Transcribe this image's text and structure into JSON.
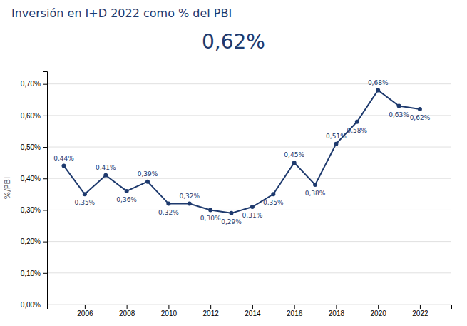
{
  "chart_data": {
    "type": "line",
    "title": "Inversión en I+D 2022 como % del PBI",
    "subtitle": "0,62%",
    "ylabel": "%/PBI",
    "x": [
      2005,
      2006,
      2007,
      2008,
      2009,
      2010,
      2011,
      2012,
      2013,
      2014,
      2015,
      2016,
      2017,
      2018,
      2019,
      2020,
      2021,
      2022
    ],
    "values": [
      0.44,
      0.35,
      0.41,
      0.36,
      0.39,
      0.32,
      0.32,
      0.3,
      0.29,
      0.31,
      0.35,
      0.45,
      0.38,
      0.51,
      0.58,
      0.68,
      0.63,
      0.62
    ],
    "value_labels": [
      "0,44%",
      "0,35%",
      "0,41%",
      "0,36%",
      "0,39%",
      "0,32%",
      "0,32%",
      "0,30%",
      "0,29%",
      "0,31%",
      "0,35%",
      "0,45%",
      "0,38%",
      "0,51%",
      "0,58%",
      "0,68%",
      "0,63%",
      "0,62%"
    ],
    "data_labels": true,
    "color": "#1e3a6e",
    "marker": "circle",
    "xlim": [
      2004.2,
      2023.5
    ],
    "xticks": [
      2006,
      2008,
      2010,
      2012,
      2014,
      2016,
      2018,
      2020,
      2022
    ],
    "ylim": [
      0.0,
      0.74
    ],
    "yticks": [
      {
        "value": 0.0,
        "label": "0,00%"
      },
      {
        "value": 0.1,
        "label": "0,10%"
      },
      {
        "value": 0.2,
        "label": "0,20%"
      },
      {
        "value": 0.3,
        "label": "0,30%"
      },
      {
        "value": 0.4,
        "label": "0,40%"
      },
      {
        "value": 0.5,
        "label": "0,50%"
      },
      {
        "value": 0.6,
        "label": "0,60%"
      },
      {
        "value": 0.7,
        "label": "0,70%"
      }
    ],
    "grid": true
  }
}
